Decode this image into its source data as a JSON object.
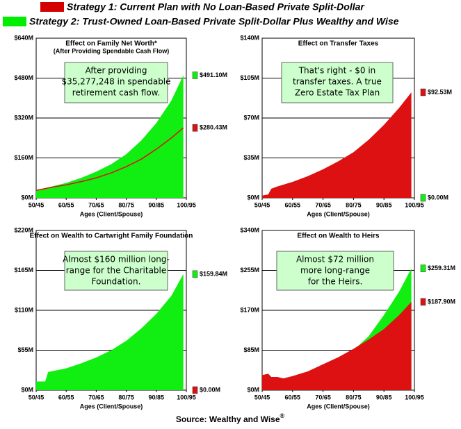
{
  "legend": [
    {
      "name": "Strategy 1: Current Plan with No Loan-Based Private Split-Dollar",
      "color": "#d40000"
    },
    {
      "name": "Strategy 2: Trust-Owned Loan-Based Private Split-Dollar Plus Wealthy and Wise",
      "color": "#00ee00"
    }
  ],
  "chart_data": [
    {
      "type": "area",
      "title": "Effect on Family Net Worth*",
      "subtitle": "(After Providing Spendable Cash Flow)",
      "xlabel": "Ages (Client/Spouse)",
      "annotation": [
        "After providing",
        "$35,277,248 in spendable",
        "retirement cash flow."
      ],
      "x": [
        50,
        55,
        60,
        65,
        70,
        75,
        80,
        85,
        90,
        95,
        99
      ],
      "xlim": [
        50,
        100
      ],
      "xticks": [
        {
          "value": 50,
          "label": "50/45"
        },
        {
          "value": 60,
          "label": "60/55"
        },
        {
          "value": 70,
          "label": "70/65"
        },
        {
          "value": 80,
          "label": "80/75"
        },
        {
          "value": 90,
          "label": "90/85"
        },
        {
          "value": 100,
          "label": "100/95"
        }
      ],
      "ylim": [
        0,
        640
      ],
      "yticks": [
        {
          "value": 0,
          "label": "$0M"
        },
        {
          "value": 160,
          "label": "$160M"
        },
        {
          "value": 320,
          "label": "$320M"
        },
        {
          "value": 480,
          "label": "$480M"
        },
        {
          "value": 640,
          "label": "$640M"
        }
      ],
      "series": [
        {
          "color": "#dd1111",
          "style": "line",
          "values": [
            30,
            42,
            52,
            65,
            80,
            100,
            125,
            155,
            195,
            240,
            280.43
          ],
          "value_labels": [
            null,
            null,
            null,
            null,
            null,
            null,
            null,
            null,
            null,
            null,
            "$280.43M"
          ]
        },
        {
          "color": "#11ee11",
          "style": "area",
          "values": [
            30,
            45,
            60,
            80,
            105,
            135,
            175,
            230,
            300,
            390,
            491.1
          ],
          "value_labels": [
            null,
            null,
            null,
            null,
            null,
            null,
            null,
            null,
            null,
            null,
            "$491.10M"
          ]
        }
      ]
    },
    {
      "type": "area",
      "title": "Effect on Transfer Taxes",
      "xlabel": "Ages (Client/Spouse)",
      "annotation": [
        "That's right - $0 in",
        "transfer taxes. A true",
        "Zero Estate Tax Plan"
      ],
      "x": [
        50,
        52,
        53,
        55,
        60,
        65,
        70,
        75,
        80,
        85,
        90,
        95,
        99
      ],
      "xlim": [
        50,
        100
      ],
      "xticks": [
        {
          "value": 50,
          "label": "50/45"
        },
        {
          "value": 60,
          "label": "60/55"
        },
        {
          "value": 70,
          "label": "70/65"
        },
        {
          "value": 80,
          "label": "80/75"
        },
        {
          "value": 90,
          "label": "90/85"
        },
        {
          "value": 100,
          "label": "100/95"
        }
      ],
      "ylim": [
        0,
        140
      ],
      "yticks": [
        {
          "value": 0,
          "label": "$0M"
        },
        {
          "value": 35,
          "label": "$35M"
        },
        {
          "value": 70,
          "label": "$70M"
        },
        {
          "value": 105,
          "label": "$105M"
        },
        {
          "value": 140,
          "label": "$140M"
        }
      ],
      "series": [
        {
          "color": "#dd1111",
          "style": "area",
          "values": [
            2,
            3,
            8,
            10,
            14,
            19,
            25,
            32,
            40,
            51,
            64,
            79,
            92.53
          ],
          "value_labels": [
            null,
            null,
            null,
            null,
            null,
            null,
            null,
            null,
            null,
            null,
            null,
            null,
            "$92.53M"
          ]
        },
        {
          "color": "#11ee11",
          "style": "area",
          "values": [
            0,
            0,
            0,
            0,
            0,
            0,
            0,
            0,
            0,
            0,
            0,
            0,
            0
          ],
          "value_labels": [
            null,
            null,
            null,
            null,
            null,
            null,
            null,
            null,
            null,
            null,
            null,
            null,
            "$0.00M"
          ]
        }
      ]
    },
    {
      "type": "area",
      "title": "Effect on Wealth to Cartwright Family Foundation",
      "xlabel": "Ages (Client/Spouse)",
      "annotation": [
        "Almost $160 million long-",
        "range for the Charitable",
        "Foundation."
      ],
      "x": [
        50,
        53,
        54,
        60,
        65,
        70,
        75,
        80,
        85,
        90,
        95,
        99
      ],
      "xlim": [
        50,
        100
      ],
      "xticks": [
        {
          "value": 50,
          "label": "50/45"
        },
        {
          "value": 60,
          "label": "60/55"
        },
        {
          "value": 70,
          "label": "70/65"
        },
        {
          "value": 80,
          "label": "80/75"
        },
        {
          "value": 90,
          "label": "90/85"
        },
        {
          "value": 100,
          "label": "100/95"
        }
      ],
      "ylim": [
        0,
        220
      ],
      "yticks": [
        {
          "value": 0,
          "label": "$0M"
        },
        {
          "value": 55,
          "label": "$55M"
        },
        {
          "value": 110,
          "label": "$110M"
        },
        {
          "value": 165,
          "label": "$165M"
        },
        {
          "value": 220,
          "label": "$220M"
        }
      ],
      "series": [
        {
          "color": "#dd1111",
          "style": "area",
          "values": [
            0,
            0,
            0,
            0,
            0,
            0,
            0,
            0,
            0,
            0,
            0,
            0
          ],
          "value_labels": [
            null,
            null,
            null,
            null,
            null,
            null,
            null,
            null,
            null,
            null,
            null,
            "$0.00M"
          ]
        },
        {
          "color": "#11ee11",
          "style": "area",
          "values": [
            12,
            12,
            25,
            30,
            37,
            45,
            55,
            68,
            85,
            105,
            130,
            159.84
          ],
          "value_labels": [
            null,
            null,
            null,
            null,
            null,
            null,
            null,
            null,
            null,
            null,
            null,
            "$159.84M"
          ]
        }
      ]
    },
    {
      "type": "area",
      "title": "Effect on Wealth to Heirs",
      "xlabel": "Ages (Client/Spouse)",
      "annotation": [
        "Almost $72 million",
        "more long-range",
        "for the Heirs."
      ],
      "x": [
        50,
        52,
        53,
        55,
        57,
        60,
        65,
        70,
        75,
        80,
        85,
        90,
        95,
        99
      ],
      "xlim": [
        50,
        100
      ],
      "xticks": [
        {
          "value": 50,
          "label": "50/45"
        },
        {
          "value": 60,
          "label": "60/55"
        },
        {
          "value": 70,
          "label": "70/65"
        },
        {
          "value": 80,
          "label": "80/75"
        },
        {
          "value": 90,
          "label": "90/85"
        },
        {
          "value": 100,
          "label": "100/95"
        }
      ],
      "ylim": [
        0,
        340
      ],
      "yticks": [
        {
          "value": 0,
          "label": "$0M"
        },
        {
          "value": 85,
          "label": "$85M"
        },
        {
          "value": 170,
          "label": "$170M"
        },
        {
          "value": 255,
          "label": "$255M"
        },
        {
          "value": 340,
          "label": "$340M"
        }
      ],
      "series": [
        {
          "color": "#dd1111",
          "style": "area",
          "values": [
            32,
            35,
            28,
            28,
            25,
            30,
            40,
            55,
            70,
            88,
            108,
            130,
            160,
            187.9
          ],
          "value_labels": [
            null,
            null,
            null,
            null,
            null,
            null,
            null,
            null,
            null,
            null,
            null,
            null,
            null,
            "$187.90M"
          ]
        },
        {
          "color": "#11ee11",
          "style": "area",
          "values": [
            28,
            30,
            20,
            22,
            18,
            22,
            32,
            45,
            62,
            85,
            115,
            160,
            210,
            259.31
          ],
          "value_labels": [
            null,
            null,
            null,
            null,
            null,
            null,
            null,
            null,
            null,
            null,
            null,
            null,
            null,
            "$259.31M"
          ]
        }
      ]
    }
  ],
  "source": "Source: Wealthy and Wise",
  "source_mark": "®"
}
